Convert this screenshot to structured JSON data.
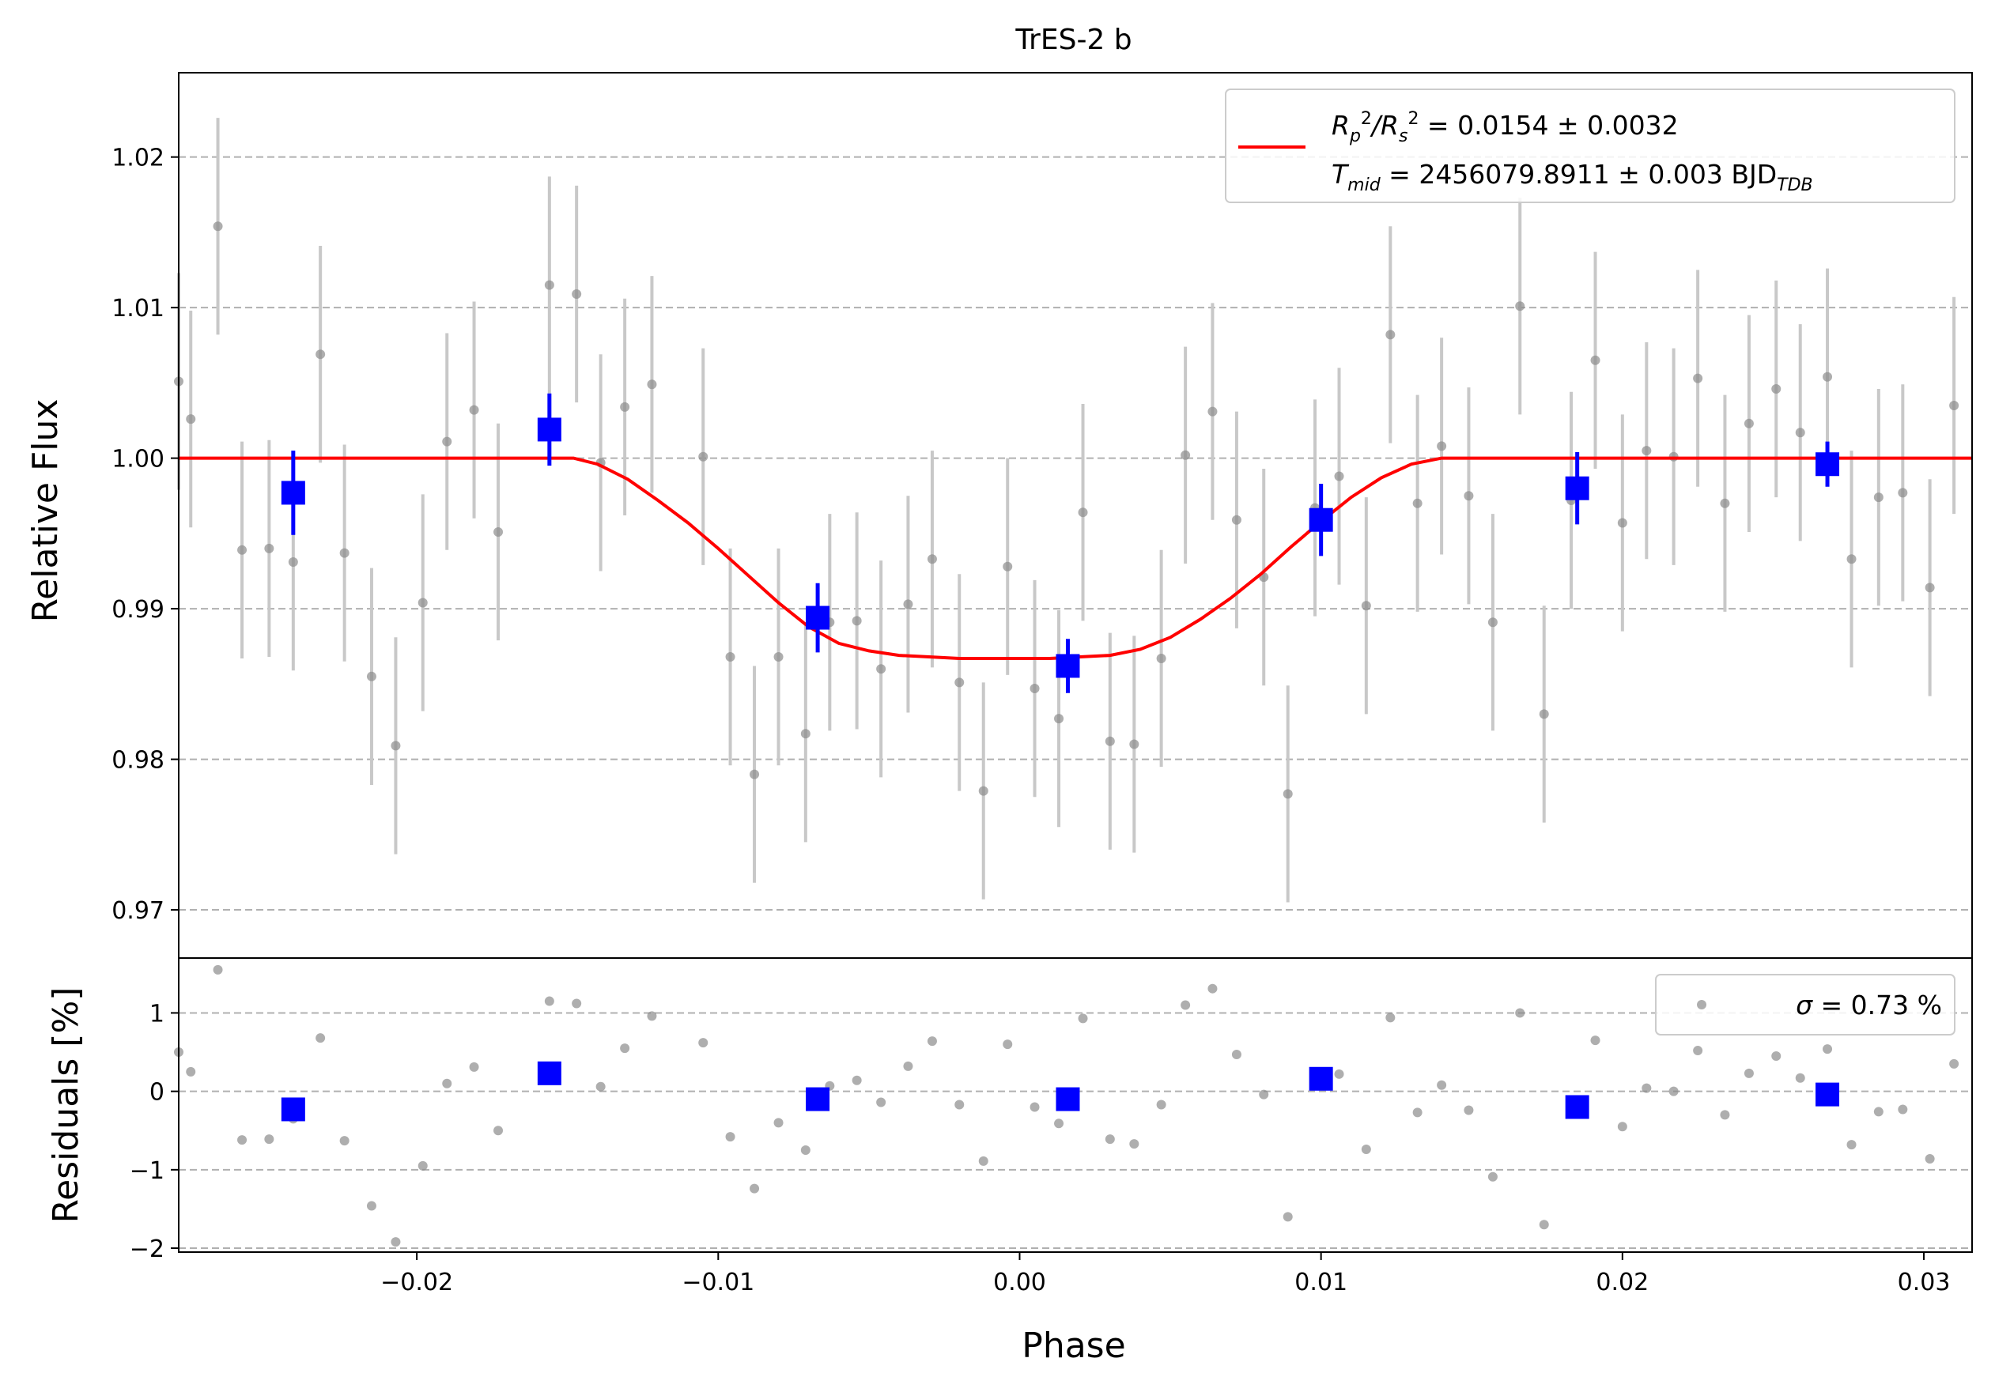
{
  "chart_data": [
    {
      "type": "scatter",
      "title": "TrES-2 b",
      "xlabel": "",
      "ylabel": "Relative Flux",
      "xlim": [
        -0.0279,
        0.0316
      ],
      "ylim": [
        0.9668,
        1.0256
      ],
      "yticks": [
        0.97,
        0.98,
        0.99,
        1.0,
        1.01,
        1.02
      ],
      "ytick_labels": [
        "0.97",
        "0.98",
        "0.99",
        "1.00",
        "1.01",
        "1.02"
      ],
      "grid": "horizontal dashed",
      "legend": {
        "placement": "top-right",
        "line1": "R₂ₚ/Rₛ² = 0.0154 ± 0.0032",
        "line1_parts": {
          "a": "R",
          "a_sub": "p",
          "a_sup": "2",
          "b": "/R",
          "b_sub": "s",
          "b_sup": "2",
          "rest": " = 0.0154 ± 0.0032"
        },
        "line2_parts": {
          "a": "T",
          "a_sub": "mid",
          "rest": " = 2456079.8911 ± 0.003 BJD",
          "unit_sub": "TDB"
        }
      },
      "colors": {
        "data": "#8c8c8c",
        "errorbar": "#c8c8c8",
        "binned": "#0000ff",
        "model": "#ff0000",
        "grid": "#b0b0b0"
      },
      "series": [
        {
          "kind": "data",
          "x": [
            -0.0279,
            -0.0275,
            -0.0266,
            -0.0258,
            -0.0249,
            -0.0241,
            -0.0232,
            -0.0224,
            -0.0215,
            -0.0207,
            -0.0198,
            -0.019,
            -0.0181,
            -0.0173,
            -0.0156,
            -0.0147,
            -0.0139,
            -0.0131,
            -0.0122,
            -0.0105,
            -0.0096,
            -0.0088,
            -0.008,
            -0.0071,
            -0.0063,
            -0.0054,
            -0.0046,
            -0.0037,
            -0.0029,
            -0.002,
            -0.0012,
            -0.0004,
            0.0005,
            0.0013,
            0.0021,
            0.003,
            0.0038,
            0.0047,
            0.0055,
            0.0064,
            0.0072,
            0.0081,
            0.0089,
            0.0098,
            0.0106,
            0.0115,
            0.0123,
            0.0132,
            0.014,
            0.0149,
            0.0157,
            0.0166,
            0.0174,
            0.0183,
            0.0191,
            0.02,
            0.0208,
            0.0217,
            0.0225,
            0.0234,
            0.0242,
            0.0251,
            0.0259,
            0.0268,
            0.0276,
            0.0285,
            0.0293,
            0.0302,
            0.031
          ],
          "y": [
            1.0051,
            1.0026,
            1.0154,
            0.9939,
            0.994,
            0.9931,
            1.0069,
            0.9937,
            0.9855,
            0.9809,
            0.9904,
            1.0011,
            1.0032,
            0.9951,
            1.0115,
            1.0109,
            0.9997,
            1.0034,
            1.0049,
            1.0001,
            0.9868,
            0.979,
            0.9868,
            0.9817,
            0.9891,
            0.9892,
            0.986,
            0.9903,
            0.9933,
            0.9851,
            0.9779,
            0.9928,
            0.9847,
            0.9827,
            0.9964,
            0.9812,
            0.981,
            0.9867,
            1.0002,
            1.0031,
            0.9959,
            0.9921,
            0.9777,
            0.9967,
            0.9988,
            0.9902,
            1.0082,
            0.997,
            1.0008,
            0.9975,
            0.9891,
            1.0101,
            0.983,
            0.9972,
            1.0065,
            0.9957,
            1.0005,
            1.0001,
            1.0053,
            0.997,
            1.0023,
            1.0046,
            1.0017,
            1.0054,
            0.9933,
            0.9974,
            0.9977,
            0.9914,
            1.0035
          ],
          "yerr": 0.0072
        },
        {
          "kind": "binned",
          "x": [
            -0.0241,
            -0.0156,
            -0.0067,
            0.0016,
            0.01,
            0.0185,
            0.0268
          ],
          "y": [
            0.9977,
            1.0019,
            0.9894,
            0.9862,
            0.9959,
            0.998,
            0.9996
          ],
          "yerr": [
            0.0028,
            0.0024,
            0.0023,
            0.0018,
            0.0024,
            0.0024,
            0.0015
          ]
        },
        {
          "kind": "model",
          "x": [
            -0.0279,
            -0.0148,
            -0.014,
            -0.013,
            -0.012,
            -0.011,
            -0.01,
            -0.009,
            -0.008,
            -0.007,
            -0.006,
            -0.005,
            -0.004,
            -0.003,
            -0.002,
            -0.001,
            0.0,
            0.001,
            0.002,
            0.003,
            0.004,
            0.005,
            0.006,
            0.007,
            0.008,
            0.009,
            0.01,
            0.011,
            0.012,
            0.013,
            0.014,
            0.0148,
            0.0316
          ],
          "y": [
            1.0,
            1.0,
            0.9996,
            0.9986,
            0.9972,
            0.9957,
            0.994,
            0.9922,
            0.9904,
            0.9888,
            0.9877,
            0.9872,
            0.9869,
            0.9868,
            0.9867,
            0.9867,
            0.9867,
            0.9867,
            0.9868,
            0.9869,
            0.9873,
            0.9881,
            0.9893,
            0.9907,
            0.9923,
            0.9941,
            0.9958,
            0.9974,
            0.9987,
            0.9996,
            1.0,
            1.0,
            1.0
          ]
        }
      ]
    },
    {
      "type": "scatter",
      "xlabel": "Phase",
      "ylabel": "Residuals [%]",
      "xlim": [
        -0.0279,
        0.0316
      ],
      "ylim": [
        -2.05,
        1.7
      ],
      "xticks": [
        -0.02,
        -0.01,
        0.0,
        0.01,
        0.02,
        0.03
      ],
      "xtick_labels": [
        "−0.02",
        "−0.01",
        "0.00",
        "0.01",
        "0.02",
        "0.03"
      ],
      "yticks": [
        -2,
        -1,
        0,
        1
      ],
      "ytick_labels": [
        "−2",
        "−1",
        "0",
        "1"
      ],
      "grid": "horizontal dashed",
      "legend": {
        "placement": "top-right",
        "sigma_symbol": "σ",
        "text": " = 0.73 %"
      },
      "series": [
        {
          "kind": "residuals",
          "x": [
            -0.0279,
            -0.0275,
            -0.0266,
            -0.0258,
            -0.0249,
            -0.0241,
            -0.0232,
            -0.0224,
            -0.0215,
            -0.0207,
            -0.0198,
            -0.019,
            -0.0181,
            -0.0173,
            -0.0156,
            -0.0147,
            -0.0139,
            -0.0131,
            -0.0122,
            -0.0105,
            -0.0096,
            -0.0088,
            -0.008,
            -0.0071,
            -0.0063,
            -0.0054,
            -0.0046,
            -0.0037,
            -0.0029,
            -0.002,
            -0.0012,
            -0.0004,
            0.0005,
            0.0013,
            0.0021,
            0.003,
            0.0038,
            0.0047,
            0.0055,
            0.0064,
            0.0072,
            0.0081,
            0.0089,
            0.0098,
            0.0106,
            0.0115,
            0.0123,
            0.0132,
            0.014,
            0.0149,
            0.0157,
            0.0166,
            0.0174,
            0.0183,
            0.0191,
            0.02,
            0.0208,
            0.0217,
            0.0225,
            0.0234,
            0.0242,
            0.0251,
            0.0259,
            0.0268,
            0.0276,
            0.0285,
            0.0293,
            0.0302,
            0.031
          ],
          "y": [
            0.5,
            0.25,
            1.55,
            -0.62,
            -0.61,
            -0.35,
            0.68,
            -0.63,
            -1.46,
            -1.92,
            -0.95,
            0.1,
            0.31,
            -0.5,
            1.15,
            1.12,
            0.06,
            0.55,
            0.96,
            0.62,
            -0.58,
            -1.24,
            -0.4,
            -0.75,
            0.07,
            0.14,
            -0.14,
            0.32,
            0.64,
            -0.17,
            -0.89,
            0.6,
            -0.2,
            -0.41,
            0.93,
            -0.61,
            -0.67,
            -0.17,
            1.1,
            1.31,
            0.47,
            -0.04,
            -1.6,
            0.14,
            0.22,
            -0.74,
            0.94,
            -0.27,
            0.08,
            -0.24,
            -1.09,
            1.0,
            -1.7,
            -0.29,
            0.65,
            -0.45,
            0.04,
            0.0,
            0.52,
            -0.3,
            0.23,
            0.45,
            0.17,
            0.54,
            -0.68,
            -0.26,
            -0.23,
            -0.86,
            0.35
          ]
        },
        {
          "kind": "binned",
          "x": [
            -0.0241,
            -0.0156,
            -0.0067,
            0.0016,
            0.01,
            0.0185,
            0.0268
          ],
          "y": [
            -0.23,
            0.23,
            -0.1,
            -0.1,
            0.16,
            -0.2,
            -0.04
          ]
        }
      ]
    }
  ]
}
